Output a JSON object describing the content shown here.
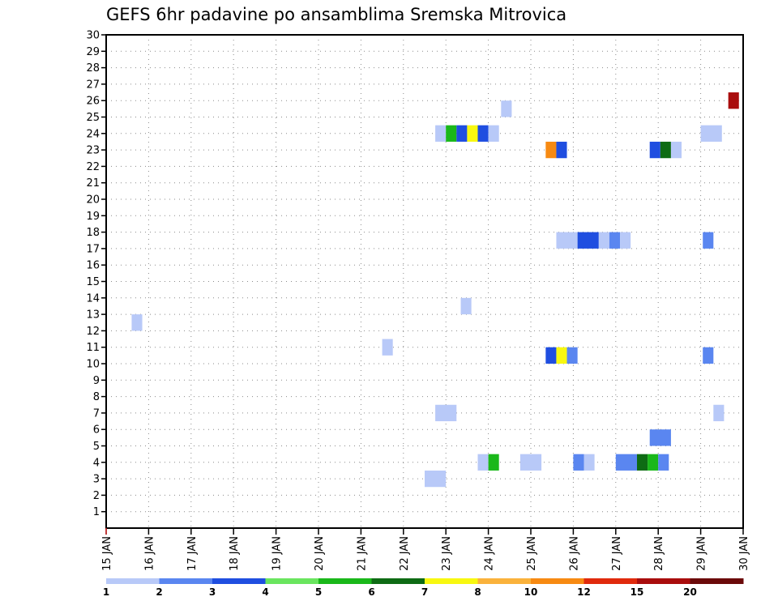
{
  "chart_data": {
    "type": "heatmap",
    "title": "GEFS 6hr padavine po ansamblima Sremska Mitrovica",
    "xlabel": "",
    "ylabel": "",
    "x_start_day": 15,
    "x_ticks": [
      "15 JAN",
      "16 JAN",
      "17 JAN",
      "18 JAN",
      "19 JAN",
      "20 JAN",
      "21 JAN",
      "22 JAN",
      "23 JAN",
      "24 JAN",
      "25 JAN",
      "26 JAN",
      "27 JAN",
      "28 JAN",
      "29 JAN",
      "30 JAN"
    ],
    "y_ticks": [
      "1",
      "2",
      "3",
      "4",
      "5",
      "6",
      "7",
      "8",
      "9",
      "10",
      "11",
      "12",
      "13",
      "14",
      "15",
      "16",
      "17",
      "18",
      "19",
      "20",
      "21",
      "22",
      "23",
      "24",
      "25",
      "26",
      "27",
      "28",
      "29",
      "30"
    ],
    "xlim": [
      15,
      30
    ],
    "ylim": [
      0,
      30
    ],
    "grid": true,
    "cells_columns": [
      "start_day",
      "duration_days",
      "member",
      "level"
    ],
    "cells": [
      [
        15.6,
        0.25,
        12.5,
        1
      ],
      [
        21.5,
        0.25,
        11,
        1
      ],
      [
        23.35,
        0.25,
        13.5,
        1
      ],
      [
        24.3,
        0.25,
        25.5,
        1
      ],
      [
        22.75,
        0.25,
        24,
        1
      ],
      [
        23.0,
        0.25,
        24,
        5
      ],
      [
        23.25,
        0.25,
        24,
        3
      ],
      [
        23.5,
        0.25,
        24,
        7
      ],
      [
        23.75,
        0.25,
        24,
        3
      ],
      [
        24.0,
        0.25,
        24,
        1
      ],
      [
        25.35,
        0.25,
        23,
        9
      ],
      [
        25.6,
        0.25,
        23,
        3
      ],
      [
        27.8,
        0.25,
        23,
        3
      ],
      [
        28.05,
        0.25,
        23,
        6
      ],
      [
        28.3,
        0.25,
        23,
        1
      ],
      [
        29.0,
        0.5,
        24,
        1
      ],
      [
        29.65,
        0.25,
        26,
        11
      ],
      [
        25.6,
        0.5,
        17.5,
        1
      ],
      [
        26.1,
        0.5,
        17.5,
        3
      ],
      [
        26.6,
        0.25,
        17.5,
        1
      ],
      [
        26.85,
        0.25,
        17.5,
        2
      ],
      [
        27.1,
        0.25,
        17.5,
        1
      ],
      [
        29.05,
        0.25,
        17.5,
        2
      ],
      [
        25.35,
        0.25,
        10.5,
        3
      ],
      [
        25.6,
        0.25,
        10.5,
        7
      ],
      [
        25.85,
        0.25,
        10.5,
        2
      ],
      [
        29.05,
        0.25,
        10.5,
        2
      ],
      [
        22.75,
        0.5,
        7,
        1
      ],
      [
        29.3,
        0.25,
        7,
        1
      ],
      [
        22.5,
        0.5,
        3,
        1
      ],
      [
        23.75,
        0.25,
        4,
        1
      ],
      [
        24.0,
        0.25,
        4,
        5
      ],
      [
        24.75,
        0.5,
        4,
        1
      ],
      [
        26.0,
        0.25,
        4,
        2
      ],
      [
        26.25,
        0.25,
        4,
        1
      ],
      [
        27.0,
        0.5,
        4,
        2
      ],
      [
        27.5,
        0.25,
        4,
        6
      ],
      [
        27.75,
        0.25,
        4,
        5
      ],
      [
        28.0,
        0.25,
        4,
        2
      ],
      [
        27.8,
        0.5,
        5.5,
        2
      ]
    ],
    "legend": {
      "placement": "bottom",
      "colors": [
        "#b8c9f8",
        "#5a86f0",
        "#1f4ee0",
        "#6ae55f",
        "#1ab81a",
        "#0e6b14",
        "#f8f810",
        "#fab23c",
        "#f78a12",
        "#e02a0c",
        "#a90d0d",
        "#6b0a0a"
      ],
      "labels": [
        "1",
        "2",
        "3",
        "4",
        "5",
        "6",
        "7",
        "8",
        "10",
        "12",
        "15",
        "20"
      ]
    }
  }
}
